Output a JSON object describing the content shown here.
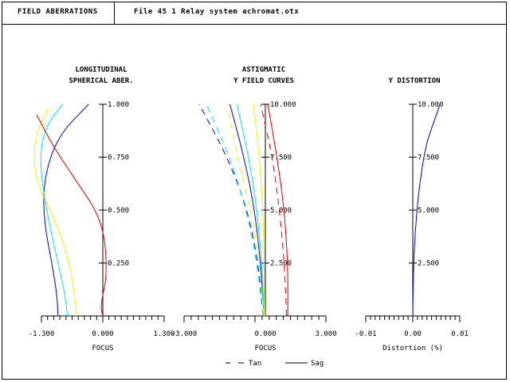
{
  "header": {
    "section_label": "FIELD ABERRATIONS",
    "file_label": "File  45 1 Relay system achromat.otx"
  },
  "legend": {
    "tan_label": "Tan",
    "sag_label": "Sag"
  },
  "colors": {
    "blue": "#0000cc",
    "cyan": "#00e6e6",
    "yellow": "#f2f200",
    "red": "#dd0000",
    "axis": "#000000"
  },
  "chart_data": [
    {
      "type": "line",
      "title": "LONGITUDINAL SPHERICAL ABER.",
      "title_lines": [
        "LONGITUDINAL",
        "SPHERICAL ABER."
      ],
      "xlabel": "FOCUS",
      "xlim": [
        -1.3,
        1.3
      ],
      "ylim": [
        0,
        1
      ],
      "x_tick_labels": [
        "-1.300",
        "0.000",
        "1.300"
      ],
      "y_tick_labels": [
        "0.250",
        "0.500",
        "0.750",
        "1.000"
      ],
      "y_ticks": [
        0.25,
        0.5,
        0.75,
        1.0
      ],
      "series": [
        {
          "color": "#0000cc",
          "points": [
            [
              -0.95,
              0
            ],
            [
              -0.97,
              0.1
            ],
            [
              -1.08,
              0.25
            ],
            [
              -1.25,
              0.45
            ],
            [
              -1.25,
              0.65
            ],
            [
              -0.95,
              0.85
            ],
            [
              -0.3,
              1.0
            ]
          ]
        },
        {
          "color": "#00e6e6",
          "points": [
            [
              -0.75,
              0
            ],
            [
              -0.8,
              0.1
            ],
            [
              -0.95,
              0.25
            ],
            [
              -1.2,
              0.5
            ],
            [
              -1.35,
              0.75
            ],
            [
              -1.2,
              0.9
            ],
            [
              -0.85,
              1.0
            ]
          ]
        },
        {
          "color": "#f2f200",
          "points": [
            [
              -0.55,
              0
            ],
            [
              -0.6,
              0.1
            ],
            [
              -0.7,
              0.25
            ],
            [
              -1.0,
              0.45
            ],
            [
              -1.45,
              0.65
            ],
            [
              -1.45,
              0.85
            ],
            [
              -1.15,
              0.98
            ]
          ]
        },
        {
          "color": "#dd0000",
          "points": [
            [
              0.0,
              0
            ],
            [
              -0.05,
              0.05
            ],
            [
              0.1,
              0.2
            ],
            [
              0.0,
              0.45
            ],
            [
              -0.6,
              0.65
            ],
            [
              -1.05,
              0.8
            ],
            [
              -1.4,
              0.95
            ]
          ]
        }
      ]
    },
    {
      "type": "line",
      "title": "ASTIGMATIC Y FIELD CURVES",
      "title_lines": [
        "ASTIGMATIC",
        "Y FIELD CURVES"
      ],
      "xlabel": "FOCUS",
      "xlim": [
        -3,
        3
      ],
      "ylim": [
        0,
        10
      ],
      "x_tick_labels": [
        "-3.000",
        "0.000",
        "3.000"
      ],
      "y_tick_labels": [
        "2.500",
        "5.000",
        "7.500",
        "10.000"
      ],
      "y_ticks": [
        2.5,
        5.0,
        7.5,
        10.0
      ],
      "series": [
        {
          "name": "Tan",
          "color": "#0000cc",
          "dash": true,
          "points": [
            [
              -0.1,
              0
            ],
            [
              -0.3,
              2.5
            ],
            [
              -0.75,
              5
            ],
            [
              -1.6,
              7.5
            ],
            [
              -2.8,
              10
            ]
          ]
        },
        {
          "name": "Sag",
          "color": "#0000cc",
          "dash": false,
          "points": [
            [
              -0.05,
              0
            ],
            [
              -0.2,
              2.5
            ],
            [
              -0.45,
              5
            ],
            [
              -0.9,
              7.5
            ],
            [
              -1.5,
              10
            ]
          ]
        },
        {
          "name": "Tan",
          "color": "#00e6e6",
          "dash": true,
          "points": [
            [
              -0.1,
              0
            ],
            [
              -0.35,
              2.5
            ],
            [
              -0.8,
              5
            ],
            [
              -1.5,
              7.5
            ],
            [
              -2.5,
              10
            ]
          ]
        },
        {
          "name": "Sag",
          "color": "#00e6e6",
          "dash": false,
          "points": [
            [
              -0.05,
              0
            ],
            [
              -0.15,
              2.5
            ],
            [
              -0.35,
              5
            ],
            [
              -0.7,
              7.5
            ],
            [
              -1.2,
              10
            ]
          ]
        },
        {
          "name": "Tan",
          "color": "#f2f200",
          "dash": true,
          "points": [
            [
              -0.05,
              0
            ],
            [
              -0.25,
              2.5
            ],
            [
              -0.6,
              5
            ],
            [
              -1.2,
              7.5
            ],
            [
              -1.6,
              10
            ]
          ]
        },
        {
          "name": "Sag",
          "color": "#f2f200",
          "dash": false,
          "points": [
            [
              -0.02,
              0
            ],
            [
              -0.05,
              2.5
            ],
            [
              -0.1,
              5
            ],
            [
              -0.25,
              7.5
            ],
            [
              -0.5,
              10
            ]
          ]
        },
        {
          "name": "Tan",
          "color": "#dd0000",
          "dash": true,
          "points": [
            [
              0.9,
              0
            ],
            [
              0.8,
              2.5
            ],
            [
              0.6,
              5
            ],
            [
              0.3,
              7.5
            ],
            [
              -0.2,
              10
            ]
          ]
        },
        {
          "name": "Sag",
          "color": "#dd0000",
          "dash": false,
          "points": [
            [
              0.95,
              0
            ],
            [
              0.95,
              2.5
            ],
            [
              0.8,
              5
            ],
            [
              0.5,
              7.5
            ],
            [
              0.1,
              10
            ]
          ]
        }
      ]
    },
    {
      "type": "line",
      "title": "Y DISTORTION",
      "title_lines": [
        "Y DISTORTION"
      ],
      "xlabel": "Distortion (%)",
      "xlim": [
        -0.01,
        0.01
      ],
      "ylim": [
        0,
        10
      ],
      "x_tick_labels": [
        "-0.01",
        "0.00",
        "0.01"
      ],
      "y_tick_labels": [
        "2.500",
        "5.000",
        "7.500",
        "10.000"
      ],
      "y_ticks": [
        2.5,
        5.0,
        7.5,
        10.0
      ],
      "series": [
        {
          "color": "#0000cc",
          "points": [
            [
              0,
              0
            ],
            [
              0.0001,
              2
            ],
            [
              0.0005,
              4
            ],
            [
              0.0013,
              6
            ],
            [
              0.0027,
              8
            ],
            [
              0.0042,
              9
            ],
            [
              0.0058,
              10
            ]
          ]
        }
      ]
    }
  ]
}
